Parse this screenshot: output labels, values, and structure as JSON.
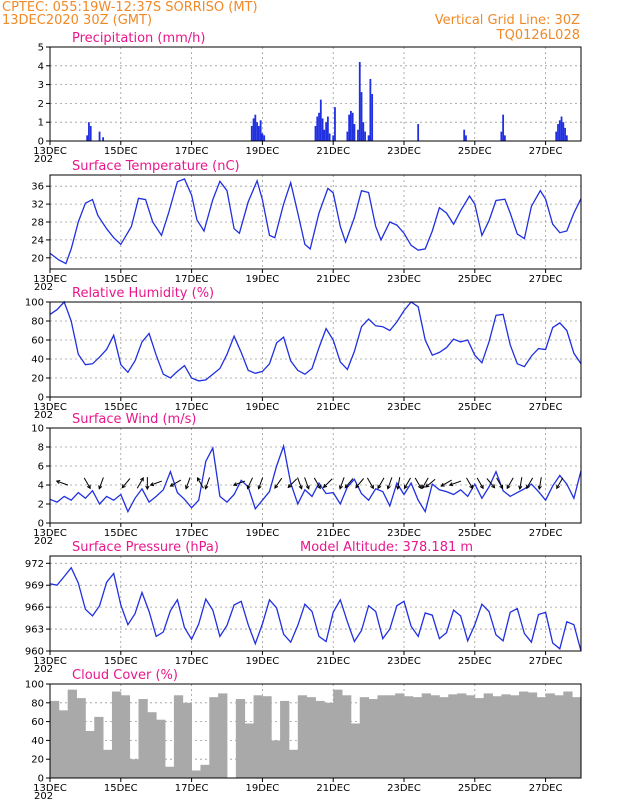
{
  "header": {
    "station": "CPTEC:   055:19W-12:37S   SORRISO (MT)",
    "date": "13DEC2020 30Z (GMT)",
    "grid_line": "Vertical Grid Line: 30Z",
    "code": "TQ0126L028"
  },
  "colors": {
    "series": "#2030e0",
    "titles": "#e8188c",
    "header": "#f08a28",
    "cloud": "#a9a9a9"
  },
  "x_axis": {
    "labels": [
      "13DEC",
      "15DEC",
      "17DEC",
      "19DEC",
      "21DEC",
      "23DEC",
      "25DEC",
      "27DEC"
    ],
    "label_days": [
      0,
      2,
      4,
      6,
      8,
      10,
      12,
      14
    ],
    "range_days": [
      0,
      15
    ],
    "cut_label": "202"
  },
  "chart_data": [
    {
      "type": "bar",
      "title": "Precipitation (mm/h)",
      "ylim": [
        0,
        5
      ],
      "yticks": [
        0,
        1,
        2,
        3,
        4,
        5
      ],
      "x": [
        1.05,
        1.1,
        1.15,
        1.4,
        1.5,
        5.7,
        5.75,
        5.8,
        5.85,
        5.9,
        5.95,
        6.0,
        6.05,
        7.5,
        7.55,
        7.6,
        7.65,
        7.7,
        7.75,
        7.8,
        7.85,
        7.9,
        8.0,
        8.05,
        8.4,
        8.45,
        8.5,
        8.55,
        8.6,
        8.7,
        8.75,
        8.8,
        8.85,
        8.9,
        9.0,
        9.05,
        9.1,
        10.4,
        11.7,
        11.75,
        12.75,
        12.8,
        12.85,
        14.3,
        14.35,
        14.4,
        14.45,
        14.5,
        14.55,
        14.6
      ],
      "values": [
        0.3,
        1.0,
        0.8,
        0.5,
        0.2,
        0.8,
        1.2,
        1.4,
        1.0,
        0.8,
        1.1,
        0.4,
        0.3,
        0.8,
        1.3,
        1.5,
        2.2,
        1.2,
        0.6,
        1.0,
        1.3,
        0.4,
        0.3,
        1.8,
        0.5,
        1.4,
        1.6,
        1.5,
        0.9,
        0.6,
        4.2,
        2.6,
        1.0,
        0.5,
        0.3,
        3.3,
        2.5,
        0.9,
        0.6,
        0.3,
        0.5,
        1.4,
        0.3,
        0.5,
        0.9,
        1.1,
        1.3,
        1.0,
        0.7,
        0.3
      ]
    },
    {
      "type": "line",
      "title": "Surface Temperature (nC)",
      "ylim": [
        17.5,
        38.5
      ],
      "yticks": [
        20,
        24,
        28,
        32,
        36
      ],
      "x": [
        0,
        0.25,
        0.45,
        0.6,
        0.8,
        1.0,
        1.2,
        1.35,
        1.6,
        1.8,
        2.0,
        2.3,
        2.5,
        2.7,
        2.9,
        3.15,
        3.35,
        3.6,
        3.8,
        4.0,
        4.15,
        4.35,
        4.6,
        4.8,
        5.0,
        5.2,
        5.35,
        5.6,
        5.85,
        6.0,
        6.2,
        6.35,
        6.6,
        6.8,
        7.0,
        7.2,
        7.35,
        7.6,
        7.85,
        8.0,
        8.2,
        8.35,
        8.6,
        8.8,
        9.0,
        9.2,
        9.35,
        9.6,
        9.8,
        10.0,
        10.2,
        10.4,
        10.6,
        10.8,
        11.0,
        11.2,
        11.4,
        11.6,
        11.85,
        12.0,
        12.2,
        12.4,
        12.6,
        12.85,
        13.0,
        13.2,
        13.4,
        13.6,
        13.85,
        14.0,
        14.2,
        14.4,
        14.6,
        14.8,
        15.0
      ],
      "values": [
        21,
        19.5,
        18.7,
        22,
        28,
        32.2,
        33,
        29.5,
        26.5,
        24.5,
        23,
        27,
        33.3,
        33,
        28,
        25,
        30,
        37,
        37.6,
        34,
        28.5,
        26,
        33,
        37.1,
        35,
        26.5,
        25.5,
        32.5,
        37.2,
        33,
        25,
        24.5,
        32,
        36.8,
        30,
        23,
        22,
        30,
        35.5,
        34.5,
        27,
        23.5,
        29,
        35,
        34.6,
        27,
        24,
        28,
        27.3,
        25.5,
        22.8,
        21.7,
        22,
        26,
        31.2,
        30,
        27.5,
        30.5,
        33.8,
        32,
        25,
        28.3,
        32.8,
        33.1,
        30,
        25.3,
        24.3,
        31.5,
        35,
        33.1,
        27.5,
        25.6,
        26,
        30,
        33.2
      ]
    },
    {
      "type": "line",
      "title": "Relative Humidity (%)",
      "ylim": [
        0,
        100
      ],
      "yticks": [
        0,
        20,
        40,
        60,
        80,
        100
      ],
      "x": [
        0,
        0.2,
        0.4,
        0.6,
        0.8,
        1.0,
        1.2,
        1.4,
        1.6,
        1.8,
        2.0,
        2.2,
        2.4,
        2.6,
        2.8,
        3.0,
        3.2,
        3.4,
        3.6,
        3.8,
        4.0,
        4.2,
        4.4,
        4.6,
        4.8,
        5.0,
        5.2,
        5.4,
        5.6,
        5.8,
        6.0,
        6.2,
        6.4,
        6.6,
        6.8,
        7.0,
        7.2,
        7.4,
        7.6,
        7.8,
        8.0,
        8.2,
        8.4,
        8.6,
        8.8,
        9.0,
        9.2,
        9.4,
        9.6,
        9.8,
        10.0,
        10.2,
        10.4,
        10.6,
        10.8,
        11.0,
        11.2,
        11.4,
        11.6,
        11.8,
        12.0,
        12.2,
        12.4,
        12.6,
        12.8,
        13.0,
        13.2,
        13.4,
        13.6,
        13.8,
        14.0,
        14.2,
        14.4,
        14.6,
        14.8,
        15.0
      ],
      "values": [
        87,
        92,
        100,
        80,
        45,
        34,
        35,
        42,
        50,
        65,
        34,
        26,
        38,
        58,
        67,
        44,
        24,
        20,
        27,
        33,
        20,
        17,
        18,
        24,
        30,
        45,
        64,
        47,
        28,
        25,
        27,
        35,
        57,
        63,
        38,
        28,
        24,
        30,
        52,
        72,
        60,
        37,
        29,
        48,
        74,
        82,
        75,
        74,
        70,
        79,
        91,
        100,
        95,
        60,
        44,
        47,
        52,
        61,
        58,
        60,
        44,
        36,
        58,
        86,
        87,
        55,
        35,
        32,
        43,
        51,
        50,
        73,
        78,
        70,
        46,
        35
      ]
    },
    {
      "type": "line",
      "title": "Surface Wind (m/s)",
      "ylim": [
        0,
        10
      ],
      "yticks": [
        0,
        2,
        4,
        6,
        8,
        10
      ],
      "x": [
        0,
        0.2,
        0.4,
        0.6,
        0.8,
        1.0,
        1.2,
        1.4,
        1.6,
        1.8,
        2.0,
        2.2,
        2.4,
        2.6,
        2.8,
        3.0,
        3.2,
        3.4,
        3.6,
        3.8,
        4.0,
        4.2,
        4.4,
        4.6,
        4.8,
        5.0,
        5.2,
        5.4,
        5.6,
        5.8,
        6.0,
        6.2,
        6.4,
        6.6,
        6.8,
        7.0,
        7.2,
        7.4,
        7.6,
        7.8,
        8.0,
        8.2,
        8.4,
        8.6,
        8.8,
        9.0,
        9.2,
        9.4,
        9.6,
        9.8,
        10.0,
        10.2,
        10.4,
        10.6,
        10.8,
        11.0,
        11.2,
        11.4,
        11.6,
        11.8,
        12.0,
        12.2,
        12.4,
        12.6,
        12.8,
        13.0,
        13.2,
        13.4,
        13.6,
        13.8,
        14.0,
        14.2,
        14.4,
        14.6,
        14.8,
        15.0
      ],
      "values": [
        2.5,
        2.2,
        2.8,
        2.4,
        3.2,
        2.6,
        3.4,
        2.0,
        2.8,
        2.4,
        3.0,
        1.2,
        2.6,
        3.6,
        2.2,
        2.8,
        3.5,
        5.4,
        3.2,
        2.5,
        1.6,
        2.4,
        6.5,
        7.9,
        2.8,
        2.2,
        3.0,
        4.5,
        3.8,
        1.5,
        2.4,
        3.3,
        6.0,
        8.1,
        4.2,
        2.0,
        3.5,
        2.8,
        4.2,
        3.1,
        3.2,
        2.0,
        3.8,
        4.6,
        3.1,
        2.4,
        3.6,
        3.3,
        1.8,
        4.2,
        3.0,
        4.2,
        2.4,
        1.2,
        4.1,
        3.5,
        3.3,
        3.0,
        3.5,
        2.8,
        4.1,
        2.6,
        3.8,
        5.4,
        3.4,
        2.8,
        3.2,
        3.6,
        4.1,
        3.3,
        2.4,
        3.9,
        5.0,
        4.1,
        2.6,
        5.5
      ]
    },
    {
      "type": "line",
      "title": "Surface Pressure (hPa)",
      "annotation": "Model Altitude: 378.181 m",
      "ylim": [
        960,
        973
      ],
      "yticks": [
        960,
        963,
        966,
        969,
        972
      ],
      "x": [
        0,
        0.2,
        0.4,
        0.6,
        0.8,
        1.0,
        1.2,
        1.4,
        1.6,
        1.8,
        2.0,
        2.2,
        2.4,
        2.6,
        2.8,
        3.0,
        3.2,
        3.4,
        3.6,
        3.8,
        4.0,
        4.2,
        4.4,
        4.6,
        4.8,
        5.0,
        5.2,
        5.4,
        5.6,
        5.8,
        6.0,
        6.2,
        6.4,
        6.6,
        6.8,
        7.0,
        7.2,
        7.4,
        7.6,
        7.8,
        8.0,
        8.2,
        8.4,
        8.6,
        8.8,
        9.0,
        9.2,
        9.4,
        9.6,
        9.8,
        10.0,
        10.2,
        10.4,
        10.6,
        10.8,
        11.0,
        11.2,
        11.4,
        11.6,
        11.8,
        12.0,
        12.2,
        12.4,
        12.6,
        12.8,
        13.0,
        13.2,
        13.4,
        13.6,
        13.8,
        14.0,
        14.2,
        14.4,
        14.6,
        14.8,
        15.0
      ],
      "values": [
        969.2,
        969.0,
        970.2,
        971.4,
        969.3,
        965.7,
        964.8,
        966.2,
        969.4,
        970.6,
        966.3,
        963.6,
        965.1,
        968.0,
        965.4,
        962.0,
        962.6,
        965.5,
        967.0,
        963.2,
        961.6,
        963.7,
        967.1,
        965.6,
        962.0,
        963.5,
        966.3,
        966.8,
        963.6,
        961.0,
        963.7,
        967.0,
        965.9,
        962.3,
        961.2,
        963.5,
        966.4,
        965.4,
        962.0,
        961.3,
        965.3,
        967.0,
        964.0,
        961.3,
        962.8,
        966.2,
        965.4,
        961.7,
        963.0,
        966.2,
        966.8,
        963.4,
        962.0,
        965.2,
        964.9,
        961.7,
        962.5,
        965.6,
        964.8,
        961.4,
        963.6,
        966.4,
        965.4,
        962.2,
        961.4,
        965.3,
        965.8,
        962.4,
        961.2,
        965.0,
        965.3,
        961.1,
        960.3,
        964.0,
        963.6,
        960.0
      ]
    },
    {
      "type": "bar",
      "title": "Cloud Cover (%)",
      "ylim": [
        0,
        100
      ],
      "yticks": [
        0,
        20,
        40,
        60,
        80,
        100
      ],
      "x": [
        0,
        0.25,
        0.5,
        0.75,
        1.0,
        1.25,
        1.5,
        1.75,
        2.0,
        2.25,
        2.5,
        2.75,
        3.0,
        3.25,
        3.5,
        3.75,
        4.0,
        4.25,
        4.5,
        4.75,
        5.0,
        5.25,
        5.5,
        5.75,
        6.0,
        6.25,
        6.5,
        6.75,
        7.0,
        7.25,
        7.5,
        7.75,
        8.0,
        8.25,
        8.5,
        8.75,
        9.0,
        9.25,
        9.5,
        9.75,
        10.0,
        10.25,
        10.5,
        10.75,
        11.0,
        11.25,
        11.5,
        11.75,
        12.0,
        12.25,
        12.5,
        12.75,
        13.0,
        13.25,
        13.5,
        13.75,
        14.0,
        14.25,
        14.5,
        14.75
      ],
      "values": [
        82,
        72,
        94,
        85,
        50,
        65,
        30,
        92,
        88,
        20,
        84,
        70,
        62,
        12,
        88,
        80,
        8,
        14,
        86,
        90,
        0,
        84,
        58,
        88,
        87,
        40,
        82,
        30,
        88,
        86,
        82,
        80,
        94,
        88,
        58,
        86,
        84,
        88,
        88,
        90,
        87,
        86,
        90,
        88,
        86,
        89,
        90,
        88,
        85,
        90,
        87,
        89,
        88,
        92,
        91,
        86,
        90,
        88,
        92,
        86
      ]
    }
  ],
  "wind_arrows": {
    "note": "direction_deg is the heading toward which each arrow points (0 = right, 90 = up)",
    "x": [
      0.35,
      1.05,
      1.45,
      2.15,
      2.55,
      2.75,
      3.0,
      3.55,
      3.9,
      4.25,
      4.45,
      5.35,
      5.65,
      5.95,
      6.45,
      6.85,
      7.05,
      7.25,
      7.55,
      7.85,
      8.25,
      8.45,
      8.75,
      9.05,
      9.35,
      9.6,
      9.85,
      10.1,
      10.4,
      10.6,
      10.75,
      11.2,
      11.45,
      11.85,
      12.15,
      12.45,
      12.7,
      13.0,
      13.3,
      13.55,
      13.85,
      14.4
    ],
    "direction_deg": [
      160,
      300,
      250,
      230,
      60,
      270,
      200,
      210,
      250,
      120,
      250,
      200,
      245,
      250,
      235,
      225,
      290,
      290,
      300,
      225,
      250,
      230,
      230,
      300,
      240,
      250,
      260,
      240,
      300,
      240,
      220,
      210,
      200,
      300,
      300,
      310,
      300,
      240,
      260,
      240,
      260,
      240
    ]
  },
  "panel_titles": [
    "Precipitation (mm/h)",
    "Surface Temperature (nC)",
    "Relative Humidity (%)",
    "Surface Wind (m/s)",
    "Surface Pressure (hPa)",
    "Cloud Cover (%)"
  ],
  "pressure_annotation": "Model Altitude: 378.181 m"
}
